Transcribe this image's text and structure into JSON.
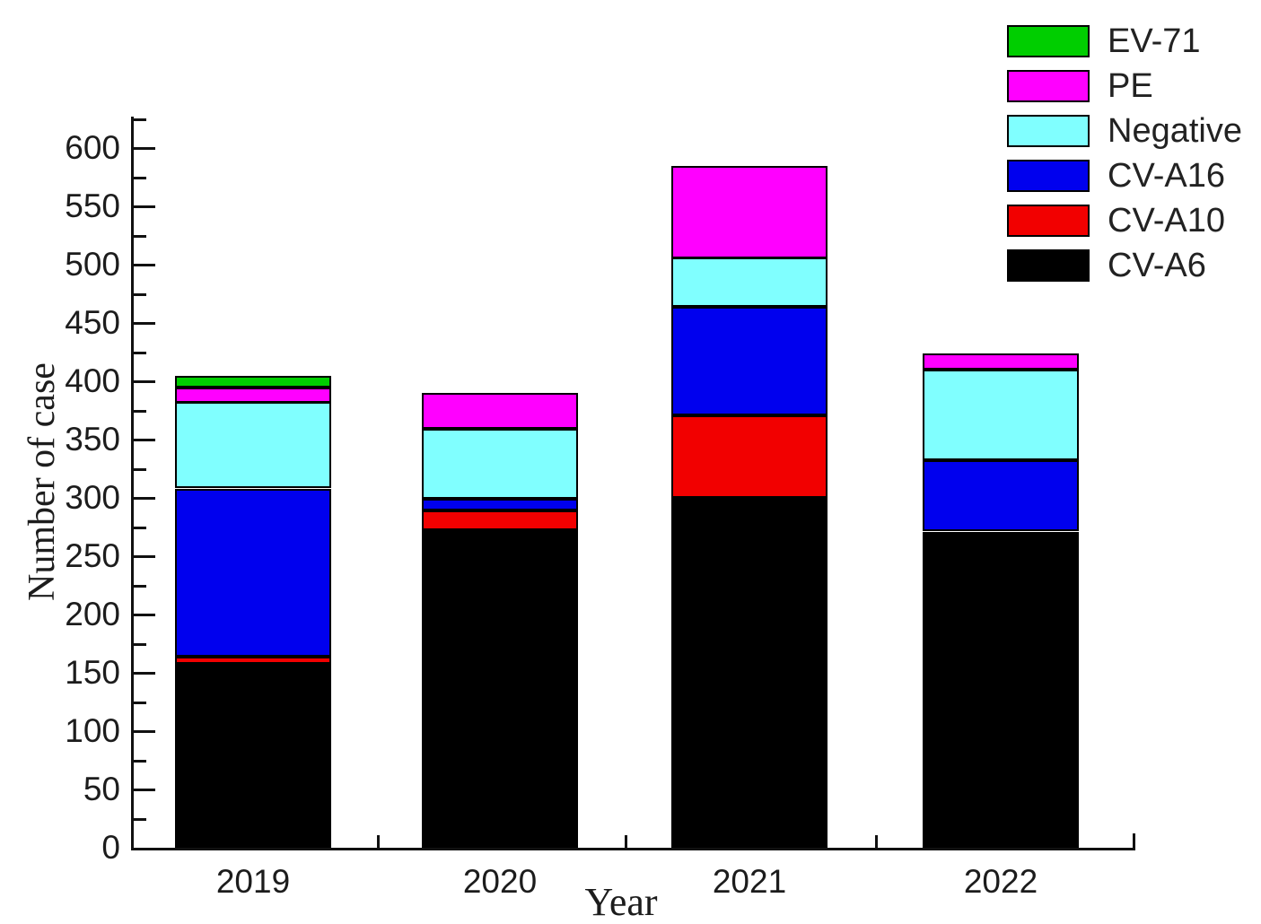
{
  "chart_data": {
    "type": "bar",
    "stacked": true,
    "title": "",
    "xlabel": "Year",
    "ylabel": "Number of case",
    "categories": [
      "2019",
      "2020",
      "2021",
      "2022"
    ],
    "series": [
      {
        "name": "CV-A6",
        "color": "#000000",
        "values": [
          158,
          272,
          300,
          271
        ]
      },
      {
        "name": "CV-A10",
        "color": "#f20000",
        "values": [
          6,
          17,
          71,
          0
        ]
      },
      {
        "name": "CV-A16",
        "color": "#0000ee",
        "values": [
          144,
          10,
          93,
          61
        ]
      },
      {
        "name": "Negative",
        "color": "#80ffff",
        "values": [
          74,
          60,
          42,
          78
        ]
      },
      {
        "name": "PE",
        "color": "#ff00ff",
        "values": [
          13,
          31,
          79,
          14
        ]
      },
      {
        "name": "EV-71",
        "color": "#00ce00",
        "values": [
          10,
          0,
          0,
          0
        ]
      }
    ],
    "totals": [
      405,
      390,
      585,
      424
    ],
    "legend": {
      "position": "top-right",
      "order": [
        "EV-71",
        "PE",
        "Negative",
        "CV-A16",
        "CV-A10",
        "CV-A6"
      ]
    },
    "ylim": [
      0,
      627
    ],
    "ytick_step": 50,
    "ytick_minor_step": 25,
    "ytick_labels": [
      "0",
      "50",
      "100",
      "150",
      "200",
      "250",
      "300",
      "350",
      "400",
      "450",
      "500",
      "550",
      "600"
    ],
    "grid": false
  }
}
